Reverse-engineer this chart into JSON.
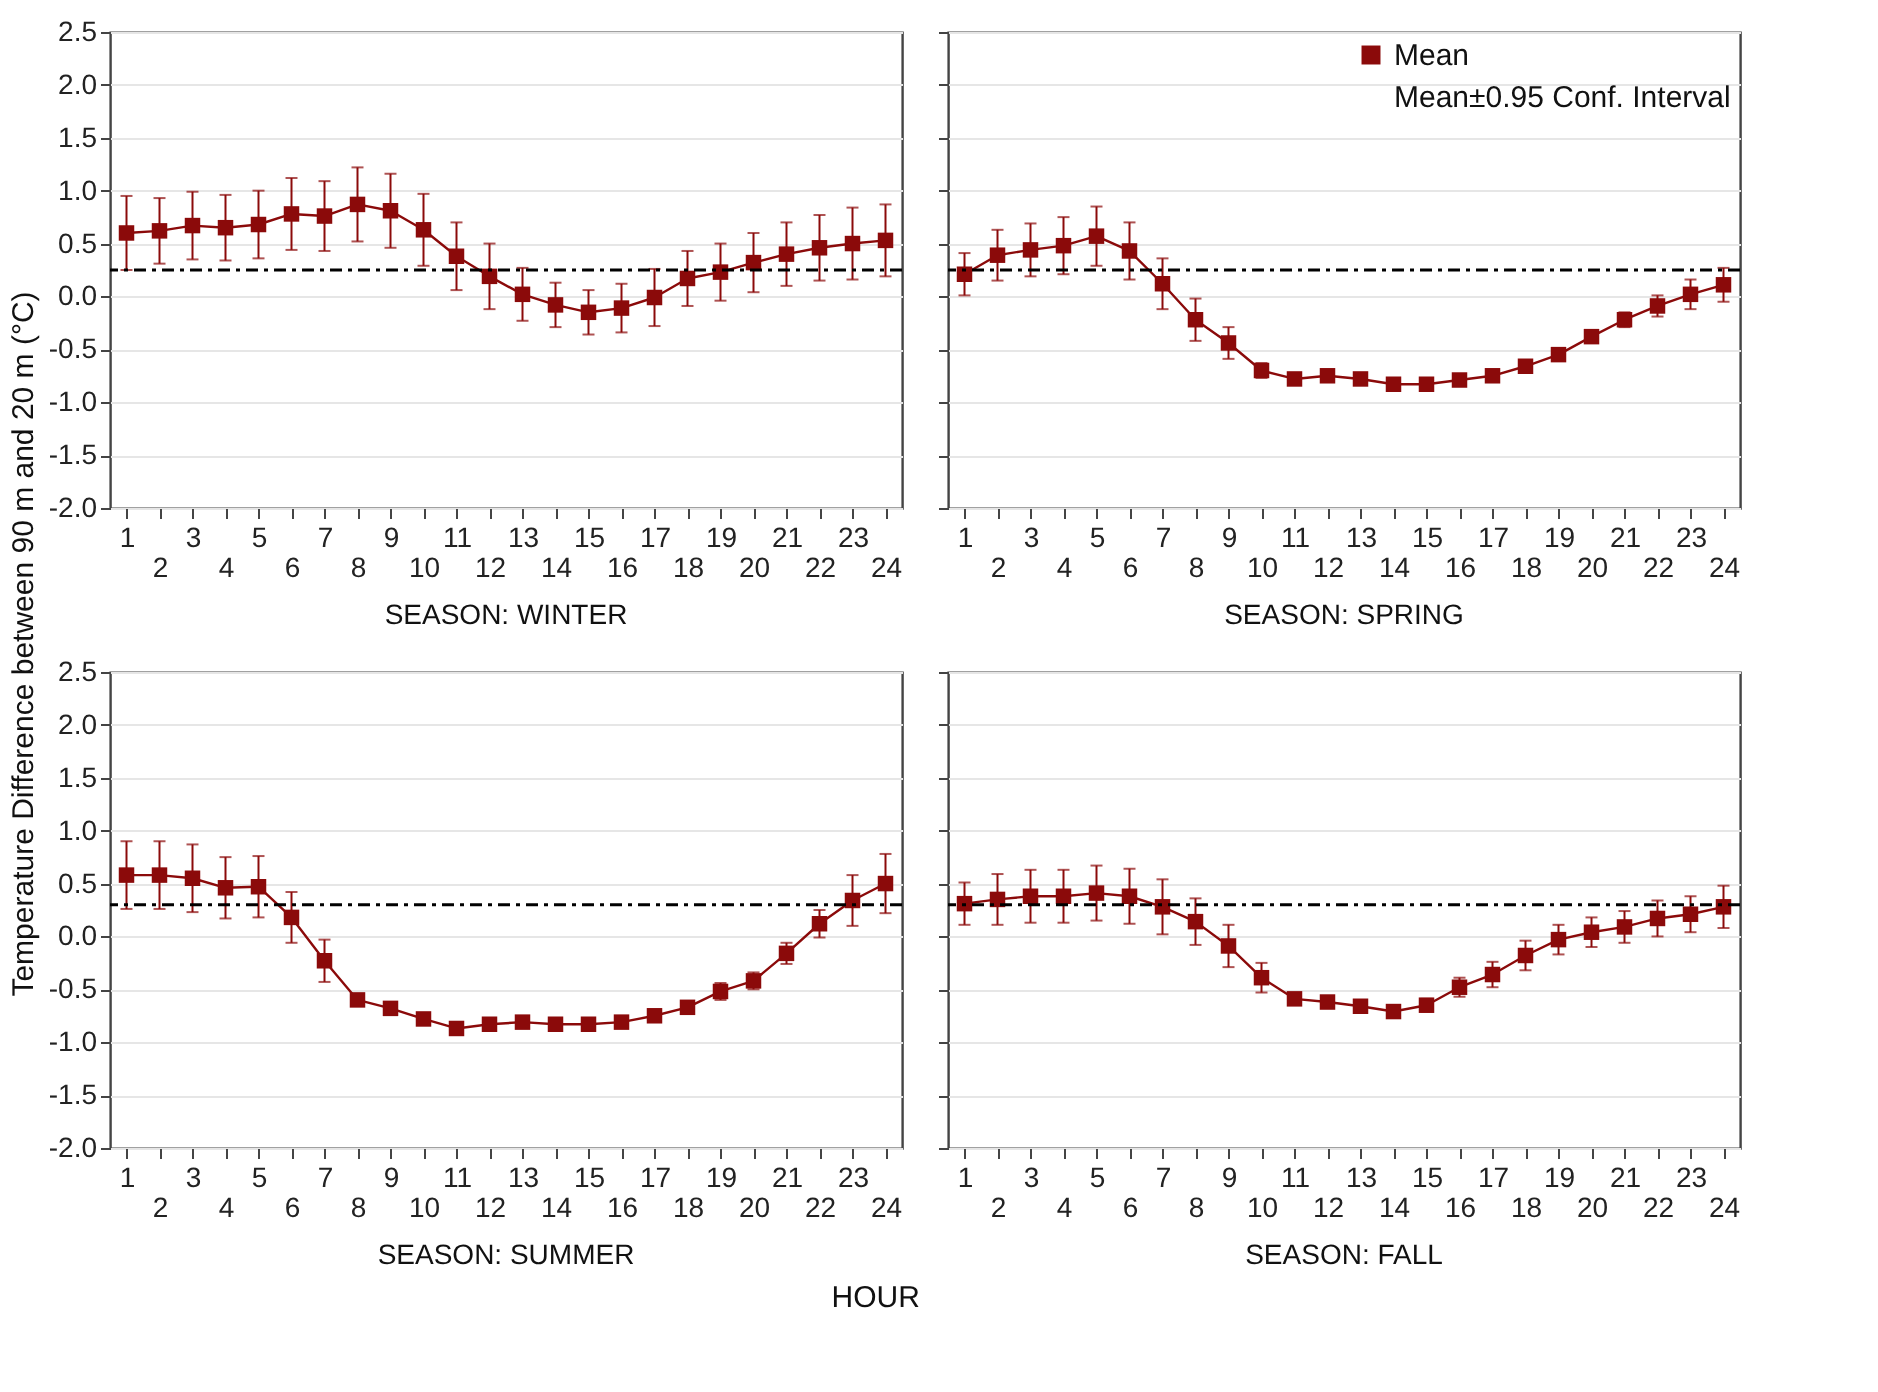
{
  "chart_data": [
    {
      "type": "line",
      "title": "SEASON: WINTER",
      "ylabel": "Temperature Difference between 90 m and 20 m (°C)",
      "categories": [
        "1",
        "2",
        "3",
        "4",
        "5",
        "6",
        "7",
        "8",
        "9",
        "10",
        "11",
        "12",
        "13",
        "14",
        "15",
        "16",
        "17",
        "18",
        "19",
        "20",
        "21",
        "22",
        "23",
        "24"
      ],
      "series": [
        {
          "color": "#8b0a0a",
          "values": [
            0.6,
            0.62,
            0.67,
            0.65,
            0.68,
            0.78,
            0.76,
            0.87,
            0.81,
            0.63,
            0.38,
            0.19,
            0.02,
            -0.08,
            -0.15,
            -0.11,
            -0.01,
            0.17,
            0.23,
            0.32,
            0.4,
            0.46,
            0.5,
            0.53
          ],
          "errors": [
            0.35,
            0.31,
            0.32,
            0.31,
            0.32,
            0.34,
            0.33,
            0.35,
            0.35,
            0.34,
            0.32,
            0.31,
            0.25,
            0.21,
            0.21,
            0.23,
            0.27,
            0.26,
            0.27,
            0.28,
            0.3,
            0.31,
            0.34,
            0.34
          ]
        }
      ],
      "ylim": [
        -2,
        2.5
      ],
      "yticks": [
        {
          "value": -2,
          "label": "-2.0"
        },
        -1.5,
        {
          "value": -1,
          "label": "-1.0"
        },
        -0.5,
        {
          "value": 0,
          "label": "0.0"
        },
        0.5,
        {
          "value": 1,
          "label": "1.0"
        },
        1.5,
        {
          "value": 2,
          "label": "2.0"
        },
        2.5
      ],
      "grid": "y",
      "marker": "square",
      "line_style": "solid",
      "ref_lines": [
        {
          "axis": "y",
          "value": 0.25,
          "line_style": "dashed",
          "color": "#000000"
        }
      ]
    },
    {
      "type": "line",
      "title": "SEASON: SPRING",
      "categories": [
        "1",
        "2",
        "3",
        "4",
        "5",
        "6",
        "7",
        "8",
        "9",
        "10",
        "11",
        "12",
        "13",
        "14",
        "15",
        "16",
        "17",
        "18",
        "19",
        "20",
        "21",
        "22",
        "23",
        "24"
      ],
      "series": [
        {
          "name": "Mean",
          "color": "#8b0a0a",
          "values": [
            0.21,
            0.39,
            0.44,
            0.48,
            0.57,
            0.43,
            0.12,
            -0.22,
            -0.44,
            -0.7,
            -0.78,
            -0.75,
            -0.78,
            -0.83,
            -0.83,
            -0.79,
            -0.75,
            -0.66,
            -0.55,
            -0.38,
            -0.22,
            -0.09,
            0.02,
            0.11
          ],
          "errors": [
            0.2,
            0.24,
            0.25,
            0.27,
            0.28,
            0.27,
            0.24,
            0.2,
            0.15,
            0.07,
            0.04,
            0.04,
            0.04,
            0.04,
            0.04,
            0.04,
            0.04,
            0.04,
            0.04,
            0.05,
            0.07,
            0.1,
            0.14,
            0.16
          ]
        }
      ],
      "ylim": [
        -2,
        2.5
      ],
      "yticks": [
        -2,
        -1.5,
        -1,
        -0.5,
        0,
        0.5,
        1,
        1.5,
        2,
        2.5
      ],
      "tick_labels": "x",
      "grid": "y",
      "marker": "square",
      "line_style": "solid",
      "legend": "top right",
      "annotations": [
        "Mean±0.95 Conf. Interval"
      ],
      "ref_lines": [
        {
          "axis": "y",
          "value": 0.25,
          "line_style": "dashed",
          "color": "#000000"
        }
      ]
    },
    {
      "type": "line",
      "title": "SEASON: SUMMER",
      "xlabel": "HOUR",
      "categories": [
        "1",
        "2",
        "3",
        "4",
        "5",
        "6",
        "7",
        "8",
        "9",
        "10",
        "11",
        "12",
        "13",
        "14",
        "15",
        "16",
        "17",
        "18",
        "19",
        "20",
        "21",
        "22",
        "23",
        "24"
      ],
      "series": [
        {
          "color": "#8b0a0a",
          "values": [
            0.58,
            0.58,
            0.55,
            0.46,
            0.47,
            0.18,
            -0.23,
            -0.6,
            -0.68,
            -0.78,
            -0.87,
            -0.83,
            -0.81,
            -0.83,
            -0.83,
            -0.81,
            -0.75,
            -0.67,
            -0.52,
            -0.42,
            -0.16,
            0.12,
            0.34,
            0.5
          ],
          "errors": [
            0.32,
            0.32,
            0.32,
            0.29,
            0.29,
            0.24,
            0.2,
            0.05,
            0.04,
            0.04,
            0.04,
            0.04,
            0.04,
            0.04,
            0.04,
            0.04,
            0.04,
            0.04,
            0.08,
            0.08,
            0.1,
            0.13,
            0.24,
            0.28
          ]
        }
      ],
      "ylim": [
        -2,
        2.5
      ],
      "yticks": [
        {
          "value": -2,
          "label": "-2.0"
        },
        -1.5,
        {
          "value": -1,
          "label": "-1.0"
        },
        -0.5,
        {
          "value": 0,
          "label": "0.0"
        },
        0.5,
        {
          "value": 1,
          "label": "1.0"
        },
        1.5,
        {
          "value": 2,
          "label": "2.0"
        },
        2.5
      ],
      "grid": "y",
      "marker": "square",
      "line_style": "solid",
      "ref_lines": [
        {
          "axis": "y",
          "value": 0.3,
          "line_style": "dashed",
          "color": "#000000"
        }
      ]
    },
    {
      "type": "line",
      "title": "SEASON: FALL",
      "categories": [
        "1",
        "2",
        "3",
        "4",
        "5",
        "6",
        "7",
        "8",
        "9",
        "10",
        "11",
        "12",
        "13",
        "14",
        "15",
        "16",
        "17",
        "18",
        "19",
        "20",
        "21",
        "22",
        "23",
        "24"
      ],
      "series": [
        {
          "color": "#8b0a0a",
          "values": [
            0.31,
            0.35,
            0.38,
            0.38,
            0.41,
            0.38,
            0.28,
            0.14,
            -0.09,
            -0.39,
            -0.59,
            -0.62,
            -0.66,
            -0.71,
            -0.65,
            -0.48,
            -0.36,
            -0.18,
            -0.03,
            0.04,
            0.09,
            0.17,
            0.21,
            0.28
          ],
          "errors": [
            0.2,
            0.24,
            0.25,
            0.25,
            0.26,
            0.26,
            0.26,
            0.22,
            0.2,
            0.14,
            0.05,
            0.05,
            0.05,
            0.05,
            0.06,
            0.09,
            0.12,
            0.14,
            0.14,
            0.14,
            0.15,
            0.17,
            0.17,
            0.2
          ]
        }
      ],
      "ylim": [
        -2,
        2.5
      ],
      "yticks": [
        -2,
        -1.5,
        -1,
        -0.5,
        0,
        0.5,
        1,
        1.5,
        2,
        2.5
      ],
      "tick_labels": "x",
      "grid": "y",
      "marker": "square",
      "line_style": "solid",
      "ref_lines": [
        {
          "axis": "y",
          "value": 0.3,
          "line_style": "dashed",
          "color": "#000000"
        }
      ]
    }
  ]
}
